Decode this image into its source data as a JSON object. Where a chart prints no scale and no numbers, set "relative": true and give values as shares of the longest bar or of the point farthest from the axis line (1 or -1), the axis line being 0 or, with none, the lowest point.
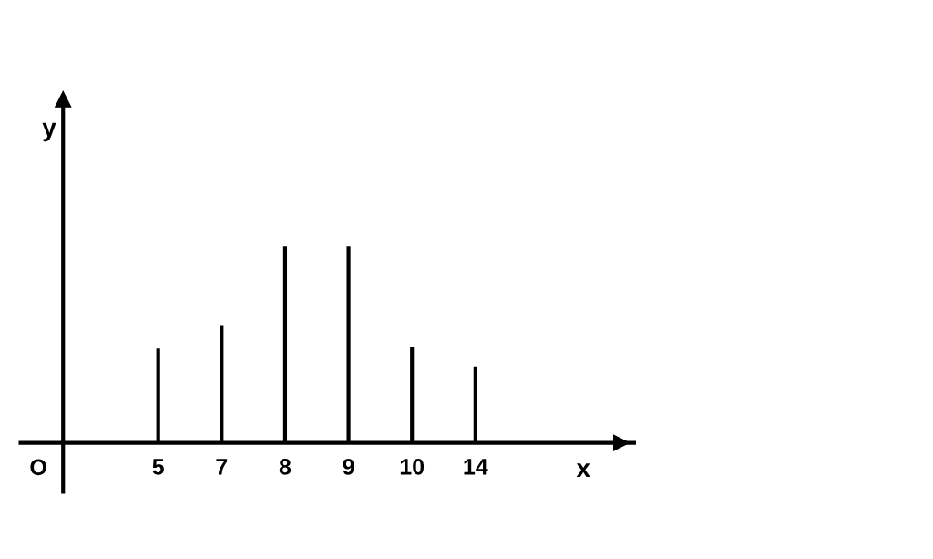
{
  "chart_data": {
    "type": "bar",
    "relative": true,
    "xlabel": "x",
    "ylabel": "y",
    "categories": [
      "5",
      "7",
      "8",
      "9",
      "10",
      "14"
    ],
    "values": [
      0.48,
      0.6,
      1,
      1,
      0.49,
      0.39
    ],
    "color": "#000000",
    "annotations": [
      "O"
    ],
    "grid": false
  }
}
